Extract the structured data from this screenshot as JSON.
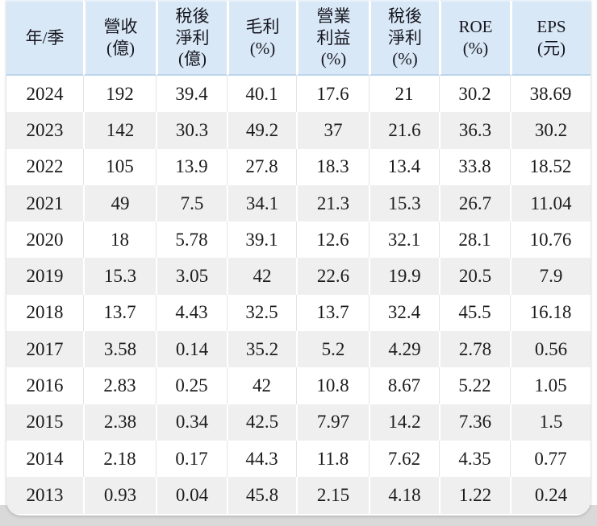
{
  "chart_data": {
    "type": "table",
    "title": "年度財務數據表 (annual financials table)",
    "columns": [
      "年/季",
      "營收\n(億)",
      "稅後\n淨利\n(億)",
      "毛利\n(%)",
      "營業\n利益\n(%)",
      "稅後\n淨利\n(%)",
      "ROE\n(%)",
      "EPS\n(元)"
    ],
    "rows": [
      [
        "2024",
        "192",
        "39.4",
        "40.1",
        "17.6",
        "21",
        "30.2",
        "38.69"
      ],
      [
        "2023",
        "142",
        "30.3",
        "49.2",
        "37",
        "21.6",
        "36.3",
        "30.2"
      ],
      [
        "2022",
        "105",
        "13.9",
        "27.8",
        "18.3",
        "13.4",
        "33.8",
        "18.52"
      ],
      [
        "2021",
        "49",
        "7.5",
        "34.1",
        "21.3",
        "15.3",
        "26.7",
        "11.04"
      ],
      [
        "2020",
        "18",
        "5.78",
        "39.1",
        "12.6",
        "32.1",
        "28.1",
        "10.76"
      ],
      [
        "2019",
        "15.3",
        "3.05",
        "42",
        "22.6",
        "19.9",
        "20.5",
        "7.9"
      ],
      [
        "2018",
        "13.7",
        "4.43",
        "32.5",
        "13.7",
        "32.4",
        "45.5",
        "16.18"
      ],
      [
        "2017",
        "3.58",
        "0.14",
        "35.2",
        "5.2",
        "4.29",
        "2.78",
        "0.56"
      ],
      [
        "2016",
        "2.83",
        "0.25",
        "42",
        "10.8",
        "8.67",
        "5.22",
        "1.05"
      ],
      [
        "2015",
        "2.38",
        "0.34",
        "42.5",
        "7.97",
        "14.2",
        "7.36",
        "1.5"
      ],
      [
        "2014",
        "2.18",
        "0.17",
        "44.3",
        "11.8",
        "7.62",
        "4.35",
        "0.77"
      ],
      [
        "2013",
        "0.93",
        "0.04",
        "45.8",
        "2.15",
        "4.18",
        "1.22",
        "0.24"
      ]
    ],
    "layout_hints": {
      "zebra_striping": true,
      "header_position": "top",
      "rows_order": "newest_first"
    }
  },
  "colors": {
    "header_bg": "#d9e8f6",
    "header_border_bottom": "#bcd5ea",
    "stripe_row_bg": "#efefef",
    "plain_row_bg": "#ffffff",
    "text": "#1c1c1c",
    "page_bottom_strip": "#d9d9d9",
    "cell_divider_on_white": "#e3e3e3",
    "cell_divider_on_gray": "#ffffff"
  }
}
